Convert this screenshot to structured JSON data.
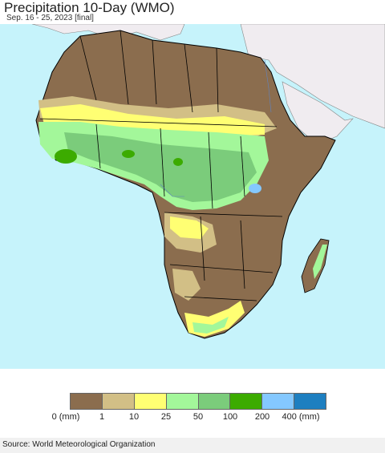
{
  "title": "Precipitation 10-Day (WMO)",
  "subtitle": "Sep. 16 - 25, 2023 [final]",
  "legend": {
    "bins": [
      {
        "color": "#8b6d4e"
      },
      {
        "color": "#d2bf86"
      },
      {
        "color": "#ffff73"
      },
      {
        "color": "#a3f79a"
      },
      {
        "color": "#7bcc7b"
      },
      {
        "color": "#3cab00"
      },
      {
        "color": "#84c8ff"
      },
      {
        "color": "#1e7fc0"
      }
    ],
    "ticks": [
      "0 (mm)",
      "1",
      "10",
      "25",
      "50",
      "100",
      "200",
      "400 (mm)"
    ]
  },
  "colors": {
    "ocean": "#c6f3fb",
    "nodata_land": "#f0ecf0",
    "border": "#000000"
  },
  "source": "Source: World Meteorological Organization"
}
